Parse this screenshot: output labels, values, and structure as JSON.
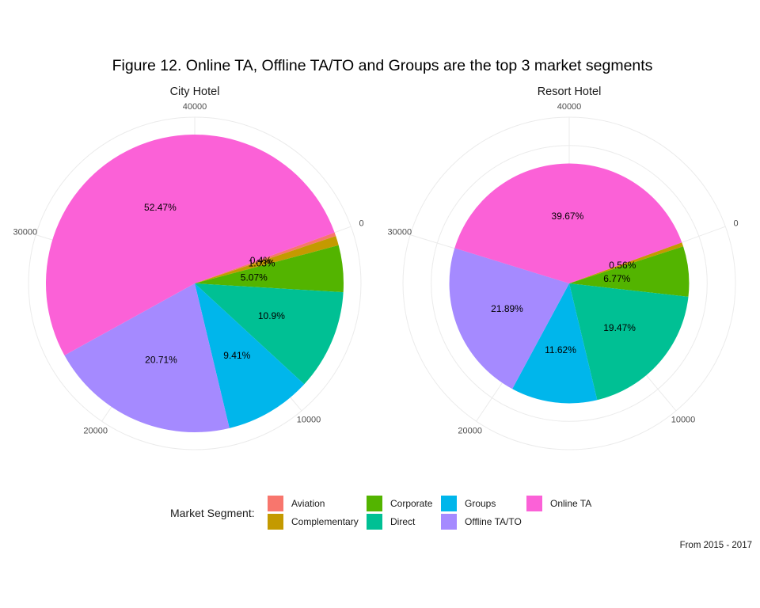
{
  "figure": {
    "title": "Figure 12. Online TA, Offline TA/TO and Groups are the top 3 market segments",
    "caption": "From 2015 - 2017"
  },
  "legend": {
    "title": "Market Segment:",
    "items": [
      {
        "label": "Aviation",
        "color": "#F8766D"
      },
      {
        "label": "Complementary",
        "color": "#C49A00"
      },
      {
        "label": "Corporate",
        "color": "#53B400"
      },
      {
        "label": "Direct",
        "color": "#00C094"
      },
      {
        "label": "Groups",
        "color": "#00B6EB"
      },
      {
        "label": "Offline TA/TO",
        "color": "#A58AFF"
      },
      {
        "label": "Online TA",
        "color": "#FB61D7"
      }
    ]
  },
  "chart_data": [
    {
      "type": "pie",
      "variant": "polar-stacked-bar",
      "title": "City Hotel",
      "axis_ticks": [
        "0",
        "10000",
        "20000",
        "30000",
        "40000"
      ],
      "axis_max": 47000,
      "categories": [
        "Aviation",
        "Complementary",
        "Corporate",
        "Direct",
        "Groups",
        "Offline TA/TO",
        "Online TA"
      ],
      "values": [
        0.4,
        1.03,
        5.07,
        10.9,
        9.41,
        20.71,
        52.47
      ],
      "labels": [
        "0.4%",
        "1.03%",
        "5.07%",
        "10.9%",
        "9.41%",
        "20.71%",
        "52.47%"
      ],
      "grid": true
    },
    {
      "type": "pie",
      "variant": "polar-stacked-bar",
      "title": "Resort Hotel",
      "axis_ticks": [
        "0",
        "10000",
        "20000",
        "30000",
        "40000"
      ],
      "axis_max": 47000,
      "categories": [
        "Aviation",
        "Complementary",
        "Corporate",
        "Direct",
        "Groups",
        "Offline TA/TO",
        "Online TA"
      ],
      "values": [
        0.0,
        0.56,
        6.77,
        19.47,
        11.62,
        21.89,
        39.67
      ],
      "labels": [
        "",
        "0.56%",
        "6.77%",
        "19.47%",
        "11.62%",
        "21.89%",
        "39.67%"
      ],
      "bar_height": 29000,
      "grid": true
    }
  ]
}
